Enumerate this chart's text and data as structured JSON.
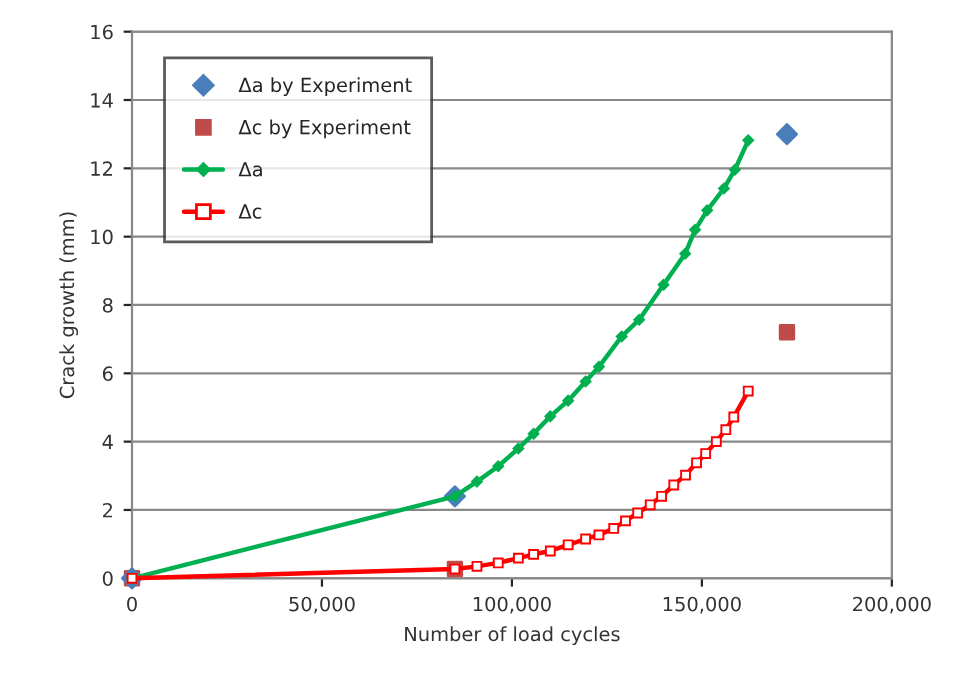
{
  "chart_data": {
    "type": "line",
    "xlabel": "Number of load cycles",
    "ylabel": "Crack growth (mm)",
    "xlim": [
      0,
      200000
    ],
    "xticks": [
      {
        "value": 0,
        "label": "0"
      },
      {
        "value": 50000,
        "label": "50,000"
      },
      {
        "value": 100000,
        "label": "100,000"
      },
      {
        "value": 150000,
        "label": "150,000"
      },
      {
        "value": 200000,
        "label": "200,000"
      }
    ],
    "ylim": [
      0,
      16
    ],
    "yticks": [
      0,
      2,
      4,
      6,
      8,
      10,
      12,
      14,
      16
    ],
    "grid": "y",
    "legend": "top left",
    "series": [
      {
        "name": "Δa by Experiment",
        "type": "scatter",
        "marker": "diamond",
        "color": "#4a7ebb",
        "x": [
          0,
          85000,
          172400
        ],
        "values": [
          0,
          2.4,
          13.0
        ]
      },
      {
        "name": "Δc by Experiment",
        "type": "scatter",
        "marker": "square",
        "color": "#be4b48",
        "x": [
          0,
          85000,
          172400
        ],
        "values": [
          0,
          0.27,
          7.2
        ]
      },
      {
        "name": "Δa",
        "marker": "diamond",
        "color": "#00b050",
        "x": [
          0,
          85000,
          90800,
          96400,
          101700,
          105700,
          110100,
          114800,
          119400,
          122900,
          128900,
          133500,
          139900,
          145600,
          148200,
          151400,
          155800,
          158700,
          162200
        ],
        "values": [
          0,
          2.4,
          2.83,
          3.28,
          3.8,
          4.23,
          4.74,
          5.2,
          5.76,
          6.19,
          7.08,
          7.57,
          8.59,
          9.5,
          10.2,
          10.77,
          11.41,
          11.96,
          12.82
        ]
      },
      {
        "name": "Δc",
        "marker": "square",
        "color": "#ff0000",
        "x": [
          0,
          85000,
          90800,
          96400,
          101700,
          105700,
          110100,
          114800,
          119400,
          122900,
          126800,
          129900,
          133100,
          136400,
          139400,
          142600,
          145700,
          148600,
          151000,
          153800,
          156300,
          158400,
          162200
        ],
        "values": [
          0,
          0.27,
          0.35,
          0.45,
          0.59,
          0.7,
          0.8,
          0.98,
          1.15,
          1.27,
          1.46,
          1.68,
          1.91,
          2.15,
          2.4,
          2.73,
          3.02,
          3.38,
          3.65,
          4.0,
          4.35,
          4.72,
          5.48
        ]
      }
    ]
  }
}
